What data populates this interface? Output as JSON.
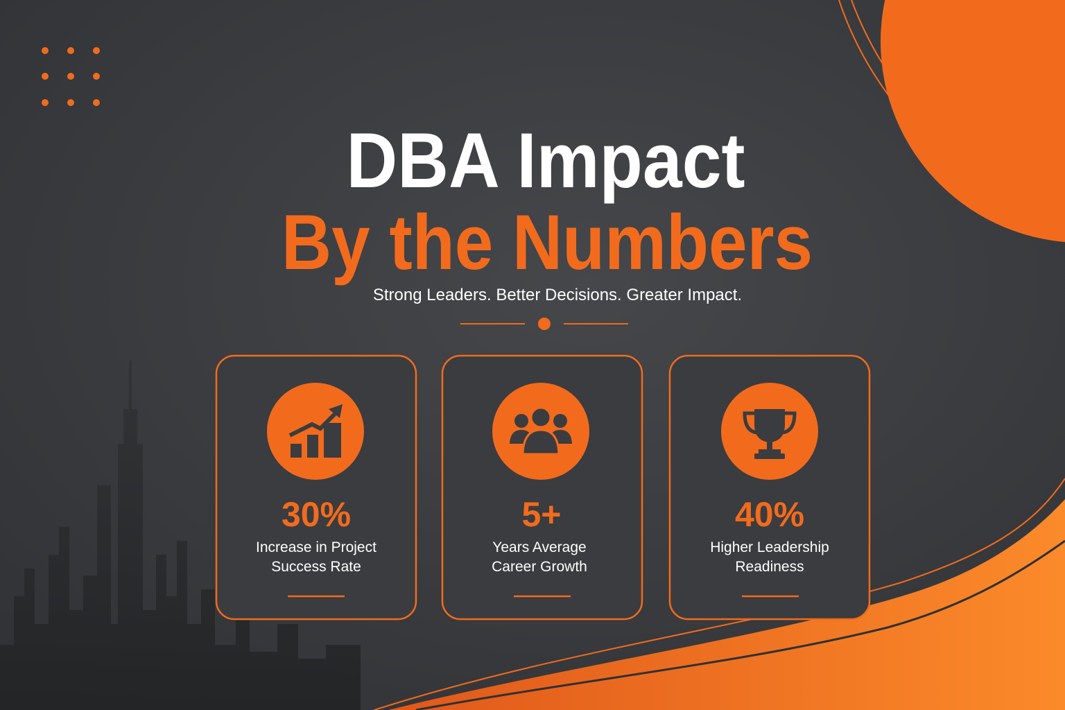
{
  "header": {
    "title_line1": "DBA Impact",
    "title_line2": "By the Numbers",
    "subtitle": "Strong Leaders. Better Decisions. Greater Impact."
  },
  "cards": [
    {
      "stat": "30%",
      "label_lines": [
        "Increase in Project",
        "Success Rate"
      ]
    },
    {
      "stat": "5+",
      "label_lines": [
        "Years Average",
        "Career Growth"
      ]
    },
    {
      "stat": "40%",
      "label_lines": [
        "Higher Leadership",
        "Readiness"
      ]
    }
  ]
}
